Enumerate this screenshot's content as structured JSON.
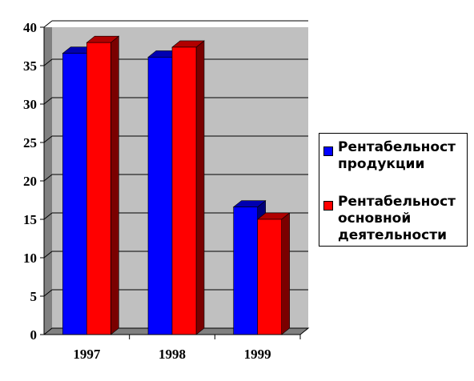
{
  "chart_data": {
    "type": "bar",
    "categories": [
      "1997",
      "1998",
      "1999"
    ],
    "series": [
      {
        "name": "Рентабельност\nпродукции",
        "values": [
          36.6,
          36.1,
          16.6
        ],
        "color": "#0000ff"
      },
      {
        "name": "Рентабельност\nосновной\nдеятельности",
        "values": [
          38.0,
          37.4,
          15.0
        ],
        "color": "#ff0000"
      }
    ],
    "ylim": [
      0,
      40
    ],
    "yticks": [
      "0",
      "5",
      "10",
      "15",
      "20",
      "25",
      "30",
      "35",
      "40"
    ],
    "grid": true,
    "legend_position": "right",
    "plot_background": "#c0c0c0",
    "style": "3d-bars"
  }
}
